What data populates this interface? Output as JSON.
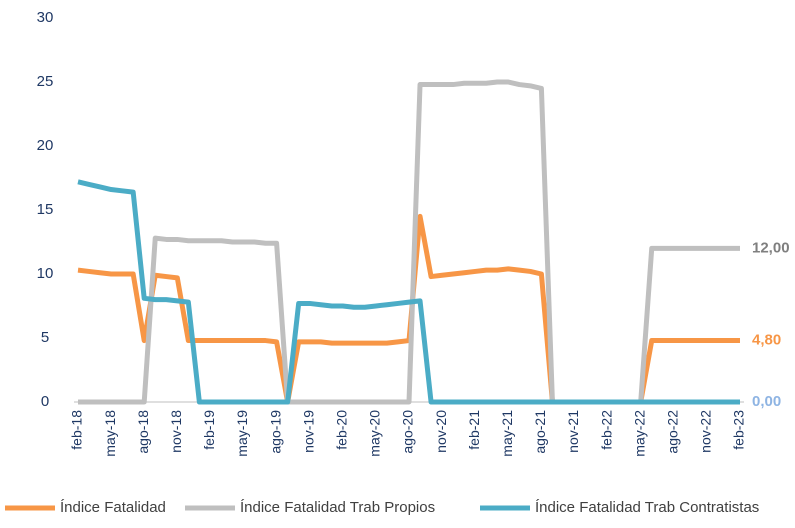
{
  "chart_data": {
    "type": "line",
    "categories": [
      "feb-18",
      null,
      null,
      "may-18",
      null,
      null,
      "ago-18",
      null,
      null,
      "nov-18",
      null,
      null,
      "feb-19",
      null,
      null,
      "may-19",
      null,
      null,
      "ago-19",
      null,
      null,
      "nov-19",
      null,
      null,
      "feb-20",
      null,
      null,
      "may-20",
      null,
      null,
      "ago-20",
      null,
      null,
      "nov-20",
      null,
      null,
      "feb-21",
      null,
      null,
      "may-21",
      null,
      null,
      "ago-21",
      null,
      null,
      "nov-21",
      null,
      null,
      "feb-22",
      null,
      null,
      "may-22",
      null,
      null,
      "ago-22",
      null,
      null,
      "nov-22",
      null,
      null,
      "feb-23"
    ],
    "series": [
      {
        "name": "Índice Fatalidad",
        "color": "#f79646",
        "label_color": "#f79646",
        "values": [
          10.3,
          10.2,
          10.1,
          10.0,
          10.0,
          10.0,
          4.8,
          9.9,
          9.8,
          9.7,
          4.8,
          4.8,
          4.8,
          4.8,
          4.8,
          4.8,
          4.8,
          4.8,
          4.7,
          0,
          4.7,
          4.7,
          4.7,
          4.6,
          4.6,
          4.6,
          4.6,
          4.6,
          4.6,
          4.7,
          4.8,
          14.5,
          9.8,
          9.9,
          10.0,
          10.1,
          10.2,
          10.3,
          10.3,
          10.4,
          10.3,
          10.2,
          10.0,
          0,
          0,
          0,
          0,
          0,
          0,
          0,
          0,
          0,
          4.8,
          4.8,
          4.8,
          4.8,
          4.8,
          4.8,
          4.8,
          4.8,
          4.8
        ],
        "value_labels": {
          "60": "4,80"
        }
      },
      {
        "name": "Índice Fatalidad Trab Propios",
        "color": "#bfbfbf",
        "label_color": "#7f7f7f",
        "values": [
          0,
          0,
          0,
          0,
          0,
          0,
          0,
          12.8,
          12.7,
          12.7,
          12.6,
          12.6,
          12.6,
          12.6,
          12.5,
          12.5,
          12.5,
          12.4,
          12.4,
          0,
          0,
          0,
          0,
          0,
          0,
          0,
          0,
          0,
          0,
          0,
          0,
          24.8,
          24.8,
          24.8,
          24.8,
          24.9,
          24.9,
          24.9,
          25.0,
          25.0,
          24.8,
          24.7,
          24.5,
          0,
          0,
          0,
          0,
          0,
          0,
          0,
          0,
          0,
          12,
          12,
          12,
          12,
          12,
          12,
          12,
          12,
          12
        ],
        "value_labels": {
          "60": "12,00"
        }
      },
      {
        "name": "Índice Fatalidad Trab Contratistas",
        "color": "#4bacc6",
        "label_color": "#8eb4e3",
        "values": [
          17.2,
          17.0,
          16.8,
          16.6,
          16.5,
          16.4,
          8.1,
          8.0,
          8.0,
          7.9,
          7.8,
          0,
          0,
          0,
          0,
          0,
          0,
          0,
          0,
          0,
          7.7,
          7.7,
          7.6,
          7.5,
          7.5,
          7.4,
          7.4,
          7.5,
          7.6,
          7.7,
          7.8,
          7.9,
          0,
          0,
          0,
          0,
          0,
          0,
          0,
          0,
          0,
          0,
          0,
          0,
          0,
          0,
          0,
          0,
          0,
          0,
          0,
          0,
          0,
          0,
          0,
          0,
          0,
          0,
          0,
          0,
          0
        ],
        "value_labels": {
          "60": "0,00"
        }
      }
    ],
    "ylim": [
      0,
      30
    ],
    "yticks": [
      0,
      5,
      10,
      15,
      20,
      25,
      30
    ]
  }
}
